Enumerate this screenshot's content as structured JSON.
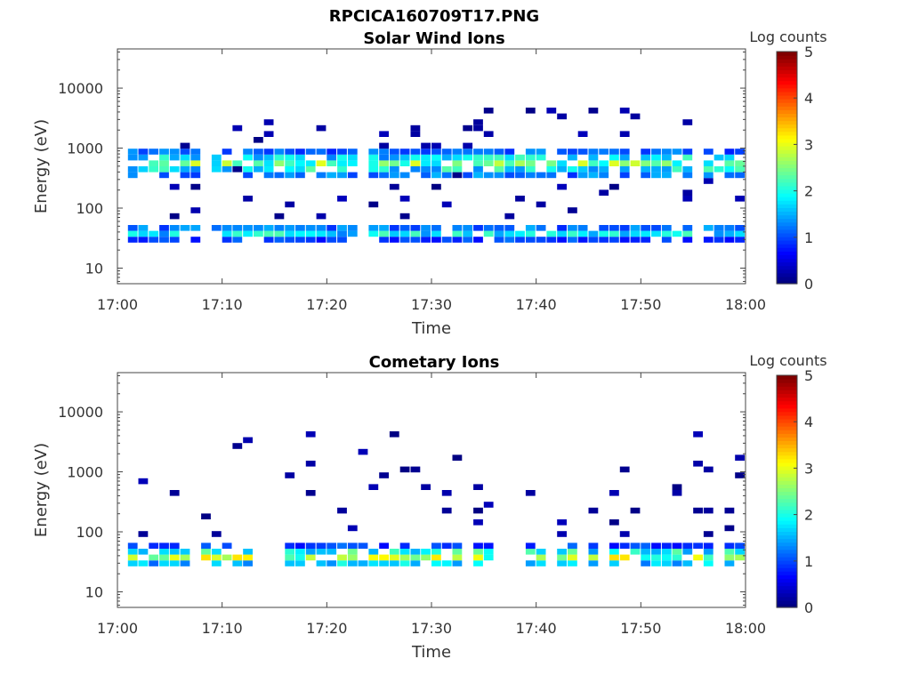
{
  "figure": {
    "title": "RPCICA160709T17.PNG"
  },
  "chart_data": [
    {
      "type": "heatmap",
      "title": "Solar Wind Ions",
      "xlabel": "Time",
      "ylabel": "Energy (eV)",
      "x_ticks": [
        "17:00",
        "17:10",
        "17:20",
        "17:30",
        "17:40",
        "17:50",
        "18:00"
      ],
      "y_ticks": [
        "10",
        "100",
        "1000",
        "10000"
      ],
      "y_scale": "log",
      "ylim": [
        5.5,
        45000
      ],
      "xlim_minutes": [
        0,
        60
      ],
      "colorbar": {
        "label": "Log counts",
        "ticks": [
          "0",
          "1",
          "2",
          "3",
          "4",
          "5"
        ],
        "range": [
          0,
          5
        ],
        "colormap": "jet"
      },
      "dominant_bands": [
        {
          "energy_range_eV": [
            27,
            55
          ],
          "log_counts_peak": 2.2,
          "description": "main solar wind band"
        },
        {
          "energy_range_eV": [
            300,
            1000
          ],
          "log_counts_peak": 2.8,
          "description": "high energy band"
        }
      ],
      "grid": false
    },
    {
      "type": "heatmap",
      "title": "Cometary Ions",
      "xlabel": "Time",
      "ylabel": "Energy (eV)",
      "x_ticks": [
        "17:00",
        "17:10",
        "17:20",
        "17:30",
        "17:40",
        "17:50",
        "18:00"
      ],
      "y_ticks": [
        "10",
        "100",
        "1000",
        "10000"
      ],
      "y_scale": "log",
      "ylim": [
        5.5,
        45000
      ],
      "xlim_minutes": [
        0,
        60
      ],
      "colorbar": {
        "label": "Log counts",
        "ticks": [
          "0",
          "1",
          "2",
          "3",
          "4",
          "5"
        ],
        "range": [
          0,
          5
        ],
        "colormap": "jet"
      },
      "dominant_bands": [
        {
          "energy_range_eV": [
            25,
            60
          ],
          "log_counts_peak": 3.2,
          "description": "main cometary ion band"
        }
      ],
      "grid": false
    }
  ]
}
